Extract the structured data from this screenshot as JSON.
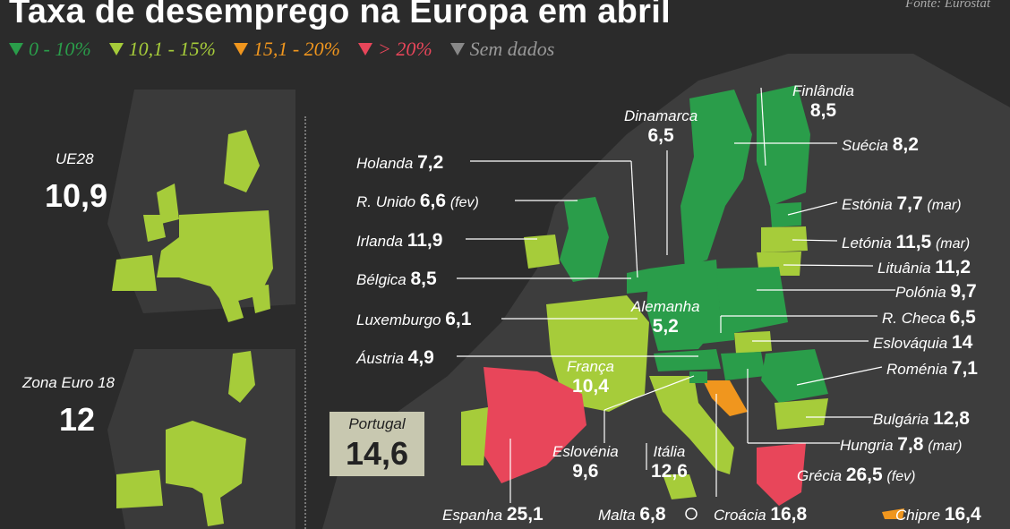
{
  "header": {
    "title": "Taxa de desemprego na Europa em abril",
    "source": "Fonte: Eurostat"
  },
  "colors": {
    "bg": "#2b2b2b",
    "land": "#3d3d3d",
    "green_dark": "#2a9d4a",
    "green_light": "#a6cc3a",
    "orange": "#f0961e",
    "red": "#e8465a",
    "grey": "#888"
  },
  "legend": [
    {
      "label": "0 - 10%",
      "color": "#2a9d4a"
    },
    {
      "label": "10,1 - 15%",
      "color": "#a6cc3a"
    },
    {
      "label": "15,1 - 20%",
      "color": "#f0961e"
    },
    {
      "label": "> 20%",
      "color": "#e8465a"
    },
    {
      "label": "Sem dados",
      "color": "#888"
    }
  ],
  "summary": {
    "eu28_name": "UE28",
    "eu28_value": "10,9",
    "ez_name": "Zona Euro 18",
    "ez_value": "12"
  },
  "portugal": {
    "name": "Portugal",
    "value": "14,6"
  },
  "countries": {
    "finlandia": {
      "name": "Finlândia",
      "value": "8,5"
    },
    "dinamarca": {
      "name": "Dinamarca",
      "value": "6,5"
    },
    "suecia": {
      "name": "Suécia",
      "value": "8,2"
    },
    "holanda": {
      "name": "Holanda",
      "value": "7,2"
    },
    "reino_unido": {
      "name": "R. Unido",
      "value": "6,6",
      "note": "(fev)"
    },
    "estonia": {
      "name": "Estónia",
      "value": "7,7",
      "note": "(mar)"
    },
    "irlanda": {
      "name": "Irlanda",
      "value": "11,9"
    },
    "letonia": {
      "name": "Letónia",
      "value": "11,5",
      "note": "(mar)"
    },
    "lituania": {
      "name": "Lituânia",
      "value": "11,2"
    },
    "belgica": {
      "name": "Bélgica",
      "value": "8,5"
    },
    "polonia": {
      "name": "Polónia",
      "value": "9,7"
    },
    "alemanha": {
      "name": "Alemanha",
      "value": "5,2"
    },
    "luxemburgo": {
      "name": "Luxemburgo",
      "value": "6,1"
    },
    "rcheca": {
      "name": "R. Checa",
      "value": "6,5"
    },
    "eslovaquia": {
      "name": "Eslováquia",
      "value": "14"
    },
    "austria": {
      "name": "Áustria",
      "value": "4,9"
    },
    "romenia": {
      "name": "Roménia",
      "value": "7,1"
    },
    "franca": {
      "name": "França",
      "value": "10,4"
    },
    "bulgaria": {
      "name": "Bulgária",
      "value": "12,8"
    },
    "eslovenia": {
      "name": "Eslovénia",
      "value": "9,6"
    },
    "italia": {
      "name": "Itália",
      "value": "12,6"
    },
    "hungria": {
      "name": "Hungria",
      "value": "7,8",
      "note": "(mar)"
    },
    "grecia": {
      "name": "Grécia",
      "value": "26,5",
      "note": "(fev)"
    },
    "espanha": {
      "name": "Espanha",
      "value": "25,1"
    },
    "malta": {
      "name": "Malta",
      "value": "6,8"
    },
    "croacia": {
      "name": "Croácia",
      "value": "16,8"
    },
    "chipre": {
      "name": "Chipre",
      "value": "16,4"
    }
  }
}
